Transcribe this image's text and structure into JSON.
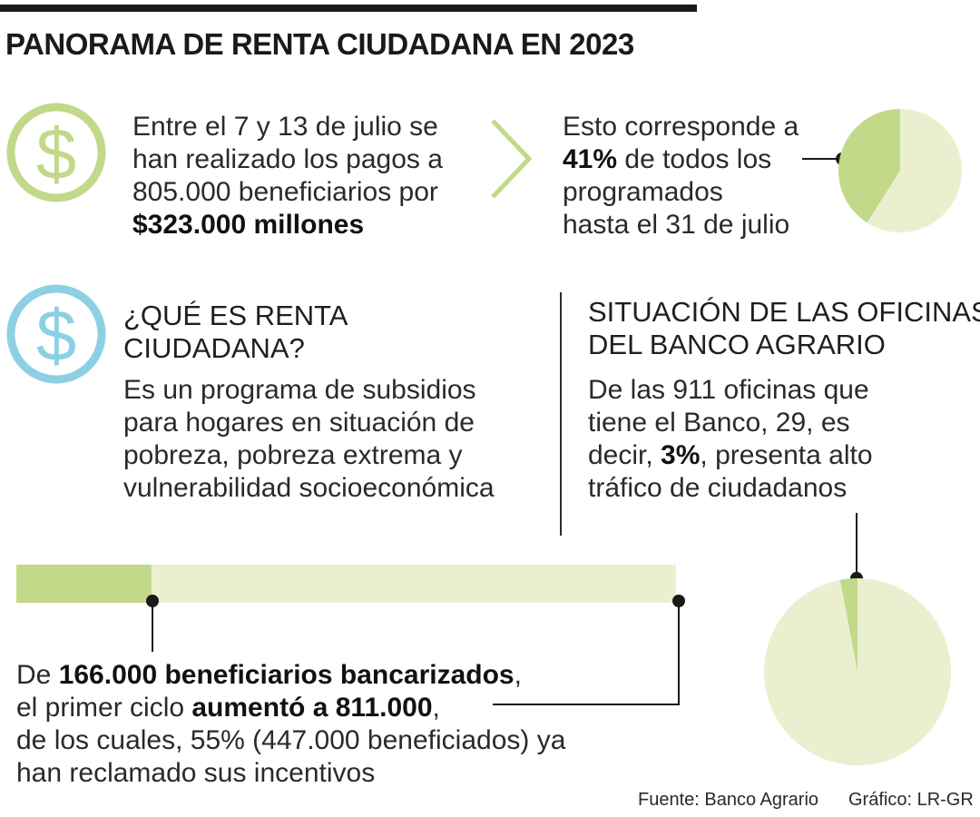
{
  "title": "PANORAMA DE RENTA CIUDADANA EN 2023",
  "payments": {
    "line1": "Entre el 7 y 13 de julio se",
    "line2": "han realizado los pagos a",
    "line3": "805.000 beneficiarios por",
    "amount": "$323.000 millones"
  },
  "percent_block": {
    "line1": "Esto corresponde a",
    "pct": "41%",
    "line2_rest": " de todos los",
    "line3": "programados",
    "line4": "hasta el 31 de julio"
  },
  "que_es": {
    "heading_1": "¿QUÉ ES RENTA",
    "heading_2": "CIUDADANA?",
    "body_1": "Es un programa de subsidios",
    "body_2": "para hogares en situación de",
    "body_3": "pobreza, pobreza extrema y",
    "body_4": "vulnerabilidad socioeconómica"
  },
  "oficinas": {
    "heading_1": "SITUACIÓN DE LAS OFICINAS",
    "heading_2": "DEL BANCO AGRARIO",
    "body_1": "De las 911 oficinas que",
    "body_2": "tiene el Banco, 29, es",
    "body_3_pre": "decir, ",
    "pct": "3%",
    "body_3_post": ", presenta alto",
    "body_4": "tráfico de ciudadanos"
  },
  "bank": {
    "pre1": "De ",
    "bold1": "166.000 beneficiarios bancarizados",
    "post1": ",",
    "pre2": "el primer ciclo ",
    "bold2": "aumentó a 811.000",
    "post2": ",",
    "line3": "de los cuales, 55% (447.000 beneficiados) ya",
    "line4": "han reclamado sus incentivos"
  },
  "footer": {
    "source": "Fuente: Banco Agrario",
    "credit": "Gráfico: LR-GR"
  },
  "icons": {
    "icon1": "dollar-circle-icon",
    "icon2": "dollar-circle-icon",
    "arrow": "chevron-right-icon"
  },
  "colors": {
    "green_dark": "#c2d98a",
    "green_light": "#eaf0cf",
    "blue": "#8dd0e4",
    "ink": "#1a1a1a"
  },
  "chart_data": [
    {
      "type": "pie",
      "name": "payments_share",
      "slices": [
        {
          "label": "41%",
          "value": 41
        },
        {
          "label": "",
          "value": 59
        }
      ]
    },
    {
      "type": "pie",
      "name": "offices_high_traffic",
      "slices": [
        {
          "label": "3%",
          "value": 3
        },
        {
          "label": "",
          "value": 97
        }
      ]
    },
    {
      "type": "bar",
      "name": "bancarizados",
      "categories": [
        "166.000",
        "811.000"
      ],
      "values": [
        166000,
        811000
      ]
    }
  ]
}
